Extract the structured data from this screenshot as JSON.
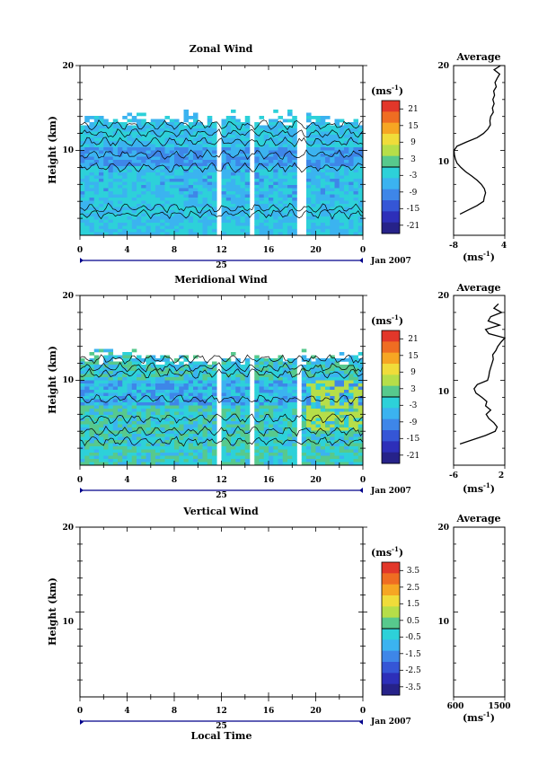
{
  "chart_data": [
    {
      "type": "heatmap",
      "title": "Zonal Wind",
      "ylabel": "Height (km)",
      "y_ticks": [
        "10",
        "20"
      ],
      "x_ticks": [
        "0",
        "4",
        "8",
        "12",
        "16",
        "20",
        "0"
      ],
      "date_label": "25",
      "month_label": "Jan 2007",
      "colorbar": {
        "unit_base": "(ms",
        "unit_exp": "-1",
        "unit_close": ")",
        "ticks": [
          "21",
          "15",
          "9",
          "3",
          "-3",
          "-9",
          "-15",
          "-21"
        ],
        "range": [
          -24,
          24
        ]
      },
      "profile": {
        "title": "Average",
        "xlabel_base": "(ms",
        "xlabel_exp": "-1",
        "xlabel_close": ")",
        "x_ticks": [
          "-8",
          "4"
        ],
        "xlim": [
          -8,
          4
        ],
        "y_ticks": [
          "10",
          "20"
        ],
        "heights": [
          2.5,
          3,
          3.5,
          4,
          4.5,
          5,
          5.5,
          6,
          6.5,
          7,
          7.5,
          8,
          8.5,
          9,
          9.5,
          10,
          10.5,
          11,
          11.5,
          12,
          12.5,
          13,
          13.5,
          14,
          14.5,
          15,
          15.5,
          16,
          16.5,
          17,
          17.5,
          18,
          18.5,
          19,
          19.5,
          20
        ],
        "values": [
          -6.5,
          -4.5,
          -2.5,
          -1.0,
          -0.8,
          -0.5,
          -0.8,
          -1.5,
          -2.5,
          -3.8,
          -5.2,
          -6.3,
          -7.2,
          -7.6,
          -7.8,
          -7.9,
          -7.2,
          -5.0,
          -2.5,
          -1.0,
          0.0,
          0.6,
          0.5,
          0.7,
          1.3,
          1.1,
          1.5,
          1.2,
          1.6,
          1.4,
          2.0,
          1.7,
          2.2,
          2.8,
          1.5,
          3.0
        ]
      },
      "colormap": "blue-to-red"
    },
    {
      "type": "heatmap",
      "title": "Meridional Wind",
      "ylabel": "Height (km)",
      "y_ticks": [
        "10",
        "20"
      ],
      "x_ticks": [
        "0",
        "4",
        "8",
        "12",
        "16",
        "20",
        "0"
      ],
      "date_label": "25",
      "month_label": "Jan 2007",
      "colorbar": {
        "unit_base": "(ms",
        "unit_exp": "-1",
        "unit_close": ")",
        "ticks": [
          "21",
          "15",
          "9",
          "3",
          "-3",
          "-9",
          "-15",
          "-21"
        ],
        "range": [
          -24,
          24
        ]
      },
      "profile": {
        "title": "Average",
        "xlabel_base": "(ms",
        "xlabel_exp": "-1",
        "xlabel_close": ")",
        "x_ticks": [
          "-6",
          "2"
        ],
        "xlim": [
          -6,
          2
        ],
        "y_ticks": [
          "10",
          "20"
        ],
        "heights": [
          2.5,
          3,
          3.5,
          4,
          4.5,
          5,
          5.5,
          6,
          6.5,
          7,
          7.5,
          8,
          8.5,
          9,
          9.5,
          10,
          10.5,
          11,
          11.5,
          12,
          12.5,
          13,
          13.5,
          14,
          14.5,
          15,
          15.5,
          16,
          16.5,
          17,
          17.5,
          18,
          18.5,
          19
        ],
        "values": [
          -5.0,
          -3.0,
          -1.0,
          0.5,
          0.8,
          0.3,
          -0.5,
          -0.9,
          -0.2,
          -1.0,
          -0.8,
          -1.6,
          -2.5,
          -2.8,
          -2.3,
          -0.7,
          -0.5,
          -0.4,
          -0.2,
          0.0,
          0.2,
          0.1,
          0.6,
          0.9,
          1.4,
          2.0,
          -0.5,
          -1.0,
          1.2,
          -0.6,
          -0.2,
          1.5,
          0.3,
          1.0
        ]
      },
      "colormap": "blue-to-red"
    },
    {
      "type": "heatmap",
      "title": "Vertical Wind",
      "ylabel": "Height (km)",
      "xlabel": "Local Time",
      "y_ticks": [
        "10",
        "20"
      ],
      "x_ticks": [
        "0",
        "4",
        "8",
        "12",
        "16",
        "20",
        "0"
      ],
      "date_label": "25",
      "month_label": "Jan 2007",
      "colorbar": {
        "unit_base": "(ms",
        "unit_exp": "-1",
        "unit_close": ")",
        "ticks": [
          "3.5",
          "2.5",
          "1.5",
          "0.5",
          "-0.5",
          "-1.5",
          "-2.5",
          "-3.5"
        ],
        "range": [
          -4,
          4
        ]
      },
      "profile": {
        "title": "Average",
        "xlabel_base": "(ms",
        "xlabel_exp": "-1",
        "xlabel_close": ")",
        "x_ticks": [
          "600",
          "1500"
        ],
        "xlim": [
          600,
          1500
        ],
        "y_ticks": [
          "10",
          "20"
        ],
        "heights": [],
        "values": []
      },
      "colormap": "blue-to-red"
    }
  ]
}
